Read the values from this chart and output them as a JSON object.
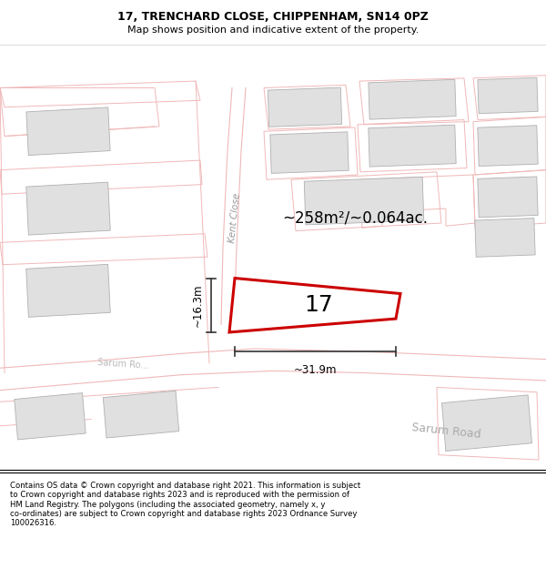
{
  "title_line1": "17, TRENCHARD CLOSE, CHIPPENHAM, SN14 0PZ",
  "title_line2": "Map shows position and indicative extent of the property.",
  "footer_text": "Contains OS data © Crown copyright and database right 2021. This information is subject to Crown copyright and database rights 2023 and is reproduced with the permission of HM Land Registry. The polygons (including the associated geometry, namely x, y co-ordinates) are subject to Crown copyright and database rights 2023 Ordnance Survey 100026316.",
  "area_label": "~258m²/~0.064ac.",
  "width_label": "~31.9m",
  "height_label": "~16.3m",
  "plot_number": "17",
  "road_label_kent": "Kent Close",
  "road_label_sarum1": "Sarum Ro...",
  "road_label_sarum2": "Sarum Road",
  "bg_color": "#ffffff",
  "map_bg": "#ffffff",
  "building_fill": "#e0e0e0",
  "building_edge": "#b0b0b0",
  "highlight_color": "#dd0000",
  "plot_edge_color": "#cc0000",
  "line_color": "#f0b8b8",
  "dim_color": "#333333"
}
